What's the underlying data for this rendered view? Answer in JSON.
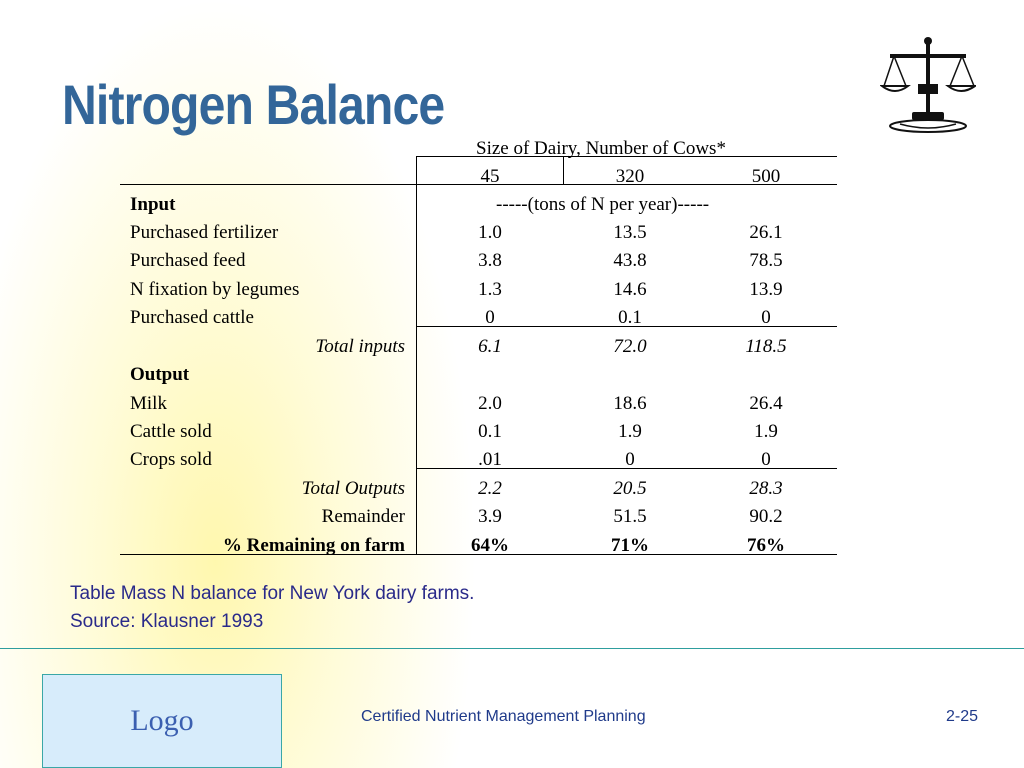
{
  "slide": {
    "title": "Nitrogen Balance"
  },
  "table": {
    "group_header": "Size of Dairy, Number of Cows*",
    "columns": [
      "45",
      "320",
      "500"
    ],
    "units_note": "-----(tons of N per year)-----",
    "input_label": "Input",
    "rows_input": [
      {
        "label": "Purchased fertilizer",
        "values": [
          "1.0",
          "13.5",
          "26.1"
        ]
      },
      {
        "label": "Purchased feed",
        "values": [
          "3.8",
          "43.8",
          "78.5"
        ]
      },
      {
        "label": "N fixation by legumes",
        "values": [
          "1.3",
          "14.6",
          "13.9"
        ]
      },
      {
        "label": "Purchased cattle",
        "values": [
          "0",
          "0.1",
          "0"
        ]
      }
    ],
    "total_inputs": {
      "label": "Total inputs",
      "values": [
        "6.1",
        "72.0",
        "118.5"
      ]
    },
    "output_label": "Output",
    "rows_output": [
      {
        "label": "Milk",
        "values": [
          "2.0",
          "18.6",
          "26.4"
        ]
      },
      {
        "label": "Cattle sold",
        "values": [
          "0.1",
          "1.9",
          "1.9"
        ]
      },
      {
        "label": "Crops sold",
        "values": [
          ".01",
          "0",
          "0"
        ]
      }
    ],
    "total_outputs": {
      "label": "Total Outputs",
      "values": [
        "2.2",
        "20.5",
        "28.3"
      ]
    },
    "remainder": {
      "label": "Remainder",
      "values": [
        "3.9",
        "51.5",
        "90.2"
      ]
    },
    "pct_remaining": {
      "label": "% Remaining on farm",
      "values": [
        "64%",
        "71%",
        "76%"
      ]
    }
  },
  "caption": {
    "line1": "Table Mass N balance for New York dairy farms.",
    "line2": "Source: Klausner 1993"
  },
  "footer": {
    "logo": "Logo",
    "course": "Certified Nutrient Management Planning",
    "page": "2-25"
  },
  "icons": {
    "scales": "balance-scales-icon"
  },
  "colors": {
    "title": "#336699",
    "caption": "#2a2a8a",
    "footer_line": "#2e9e9e",
    "logo_bg": "#d7ecfb"
  }
}
